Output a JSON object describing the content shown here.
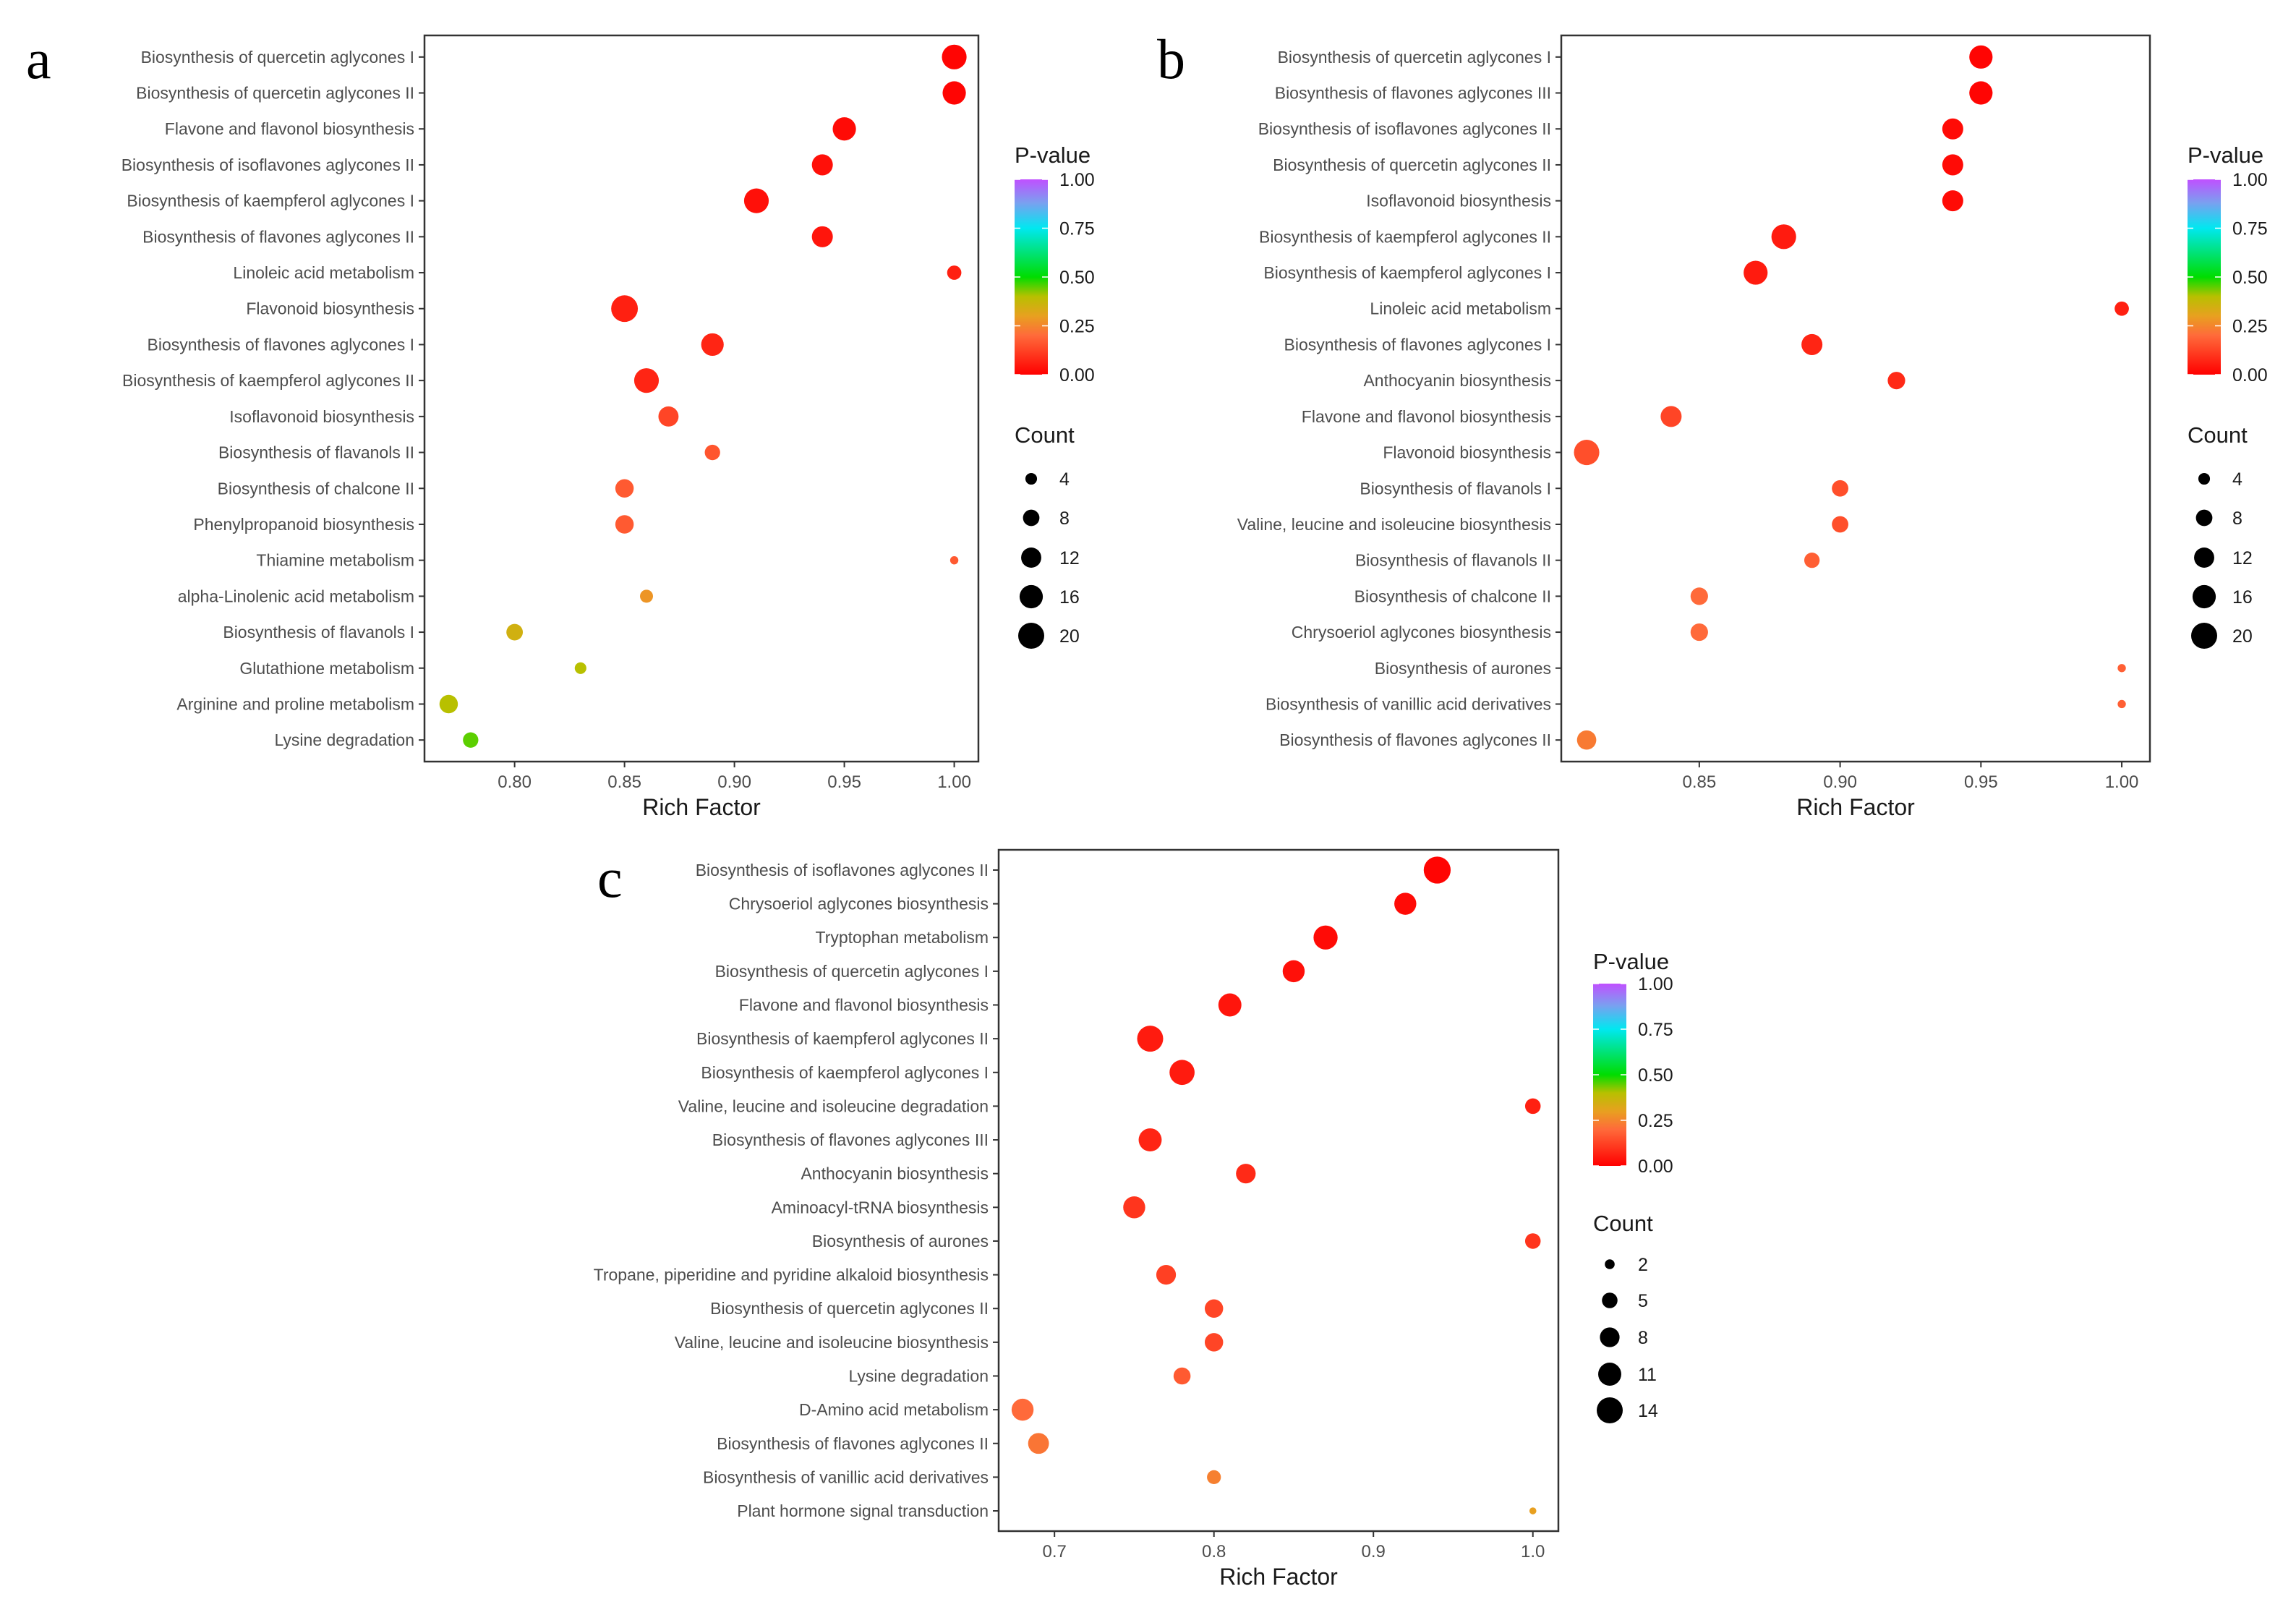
{
  "colorscale": {
    "stops": [
      [
        0,
        "#ff0000"
      ],
      [
        0.2,
        "#ff6a3a"
      ],
      [
        0.3,
        "#e8a020"
      ],
      [
        0.4,
        "#b8c000"
      ],
      [
        0.5,
        "#00dd00"
      ],
      [
        0.75,
        "#00e8f0"
      ],
      [
        0.88,
        "#7aa0f0"
      ],
      [
        1,
        "#c050ff"
      ]
    ]
  },
  "chart_data": [
    {
      "type": "scatter",
      "panel_label": "a",
      "xlabel": "Rich Factor",
      "xlim": [
        0.759,
        1.011
      ],
      "xticks": [
        0.8,
        0.85,
        0.9,
        0.95,
        1.0
      ],
      "xtick_labels": [
        "0.80",
        "0.85",
        "0.90",
        "0.95",
        "1.00"
      ],
      "color_legend": {
        "title": "P-value",
        "ticks": [
          "1.00",
          "0.75",
          "0.50",
          "0.25",
          "0.00"
        ],
        "values": [
          1,
          0.75,
          0.5,
          0.25,
          0
        ]
      },
      "size_legend": {
        "title": "Count",
        "values": [
          4,
          8,
          12,
          16,
          20
        ],
        "labels": [
          "4",
          "8",
          "12",
          "16",
          "20"
        ]
      },
      "points": [
        {
          "term": "Biosynthesis of quercetin aglycones I",
          "rich_factor": 1.0,
          "count": 18,
          "p_value": 0.01
        },
        {
          "term": "Biosynthesis of quercetin aglycones II",
          "rich_factor": 1.0,
          "count": 16,
          "p_value": 0.01
        },
        {
          "term": "Flavone and flavonol biosynthesis",
          "rich_factor": 0.95,
          "count": 16,
          "p_value": 0.02
        },
        {
          "term": "Biosynthesis of isoflavones aglycones II",
          "rich_factor": 0.94,
          "count": 13,
          "p_value": 0.03
        },
        {
          "term": "Biosynthesis of kaempferol aglycones I",
          "rich_factor": 0.91,
          "count": 18,
          "p_value": 0.03
        },
        {
          "term": "Biosynthesis of flavones aglycones II",
          "rich_factor": 0.94,
          "count": 13,
          "p_value": 0.04
        },
        {
          "term": "Linoleic acid metabolism",
          "rich_factor": 1.0,
          "count": 6,
          "p_value": 0.06
        },
        {
          "term": "Flavonoid biosynthesis",
          "rich_factor": 0.85,
          "count": 21,
          "p_value": 0.06
        },
        {
          "term": "Biosynthesis of flavones aglycones I",
          "rich_factor": 0.89,
          "count": 15,
          "p_value": 0.07
        },
        {
          "term": "Biosynthesis of kaempferol aglycones II",
          "rich_factor": 0.86,
          "count": 18,
          "p_value": 0.07
        },
        {
          "term": "Isoflavonoid biosynthesis",
          "rich_factor": 0.87,
          "count": 12,
          "p_value": 0.13
        },
        {
          "term": "Biosynthesis of flavanols II",
          "rich_factor": 0.89,
          "count": 7,
          "p_value": 0.16
        },
        {
          "term": "Biosynthesis of chalcone II",
          "rich_factor": 0.85,
          "count": 10,
          "p_value": 0.17
        },
        {
          "term": "Phenylpropanoid biosynthesis",
          "rich_factor": 0.85,
          "count": 10,
          "p_value": 0.17
        },
        {
          "term": "Thiamine metabolism",
          "rich_factor": 1.0,
          "count": 2,
          "p_value": 0.17
        },
        {
          "term": "alpha-Linolenic acid metabolism",
          "rich_factor": 0.86,
          "count": 5,
          "p_value": 0.28
        },
        {
          "term": "Biosynthesis of flavanols I",
          "rich_factor": 0.8,
          "count": 8,
          "p_value": 0.35
        },
        {
          "term": "Glutathione metabolism",
          "rich_factor": 0.83,
          "count": 4,
          "p_value": 0.4
        },
        {
          "term": "Arginine and proline metabolism",
          "rich_factor": 0.77,
          "count": 10,
          "p_value": 0.4
        },
        {
          "term": "Lysine degradation",
          "rich_factor": 0.78,
          "count": 7,
          "p_value": 0.45
        }
      ]
    },
    {
      "type": "scatter",
      "panel_label": "b",
      "xlabel": "Rich Factor",
      "xlim": [
        0.801,
        1.01
      ],
      "xticks": [
        0.85,
        0.9,
        0.95,
        1.0
      ],
      "xtick_labels": [
        "0.85",
        "0.90",
        "0.95",
        "1.00"
      ],
      "color_legend": {
        "title": "P-value",
        "ticks": [
          "1.00",
          "0.75",
          "0.50",
          "0.25",
          "0.00"
        ],
        "values": [
          1,
          0.75,
          0.5,
          0.25,
          0
        ]
      },
      "size_legend": {
        "title": "Count",
        "values": [
          4,
          8,
          12,
          16,
          20
        ],
        "labels": [
          "4",
          "8",
          "12",
          "16",
          "20"
        ]
      },
      "points": [
        {
          "term": "Biosynthesis of quercetin aglycones I",
          "rich_factor": 0.95,
          "count": 16,
          "p_value": 0.01
        },
        {
          "term": "Biosynthesis of flavones aglycones III",
          "rich_factor": 0.95,
          "count": 16,
          "p_value": 0.01
        },
        {
          "term": "Biosynthesis of isoflavones aglycones II",
          "rich_factor": 0.94,
          "count": 13,
          "p_value": 0.02
        },
        {
          "term": "Biosynthesis of quercetin aglycones II",
          "rich_factor": 0.94,
          "count": 13,
          "p_value": 0.02
        },
        {
          "term": "Isoflavonoid biosynthesis",
          "rich_factor": 0.94,
          "count": 13,
          "p_value": 0.02
        },
        {
          "term": "Biosynthesis of kaempferol aglycones II",
          "rich_factor": 0.88,
          "count": 18,
          "p_value": 0.05
        },
        {
          "term": "Biosynthesis of kaempferol aglycones I",
          "rich_factor": 0.87,
          "count": 17,
          "p_value": 0.05
        },
        {
          "term": "Linoleic acid metabolism",
          "rich_factor": 1.0,
          "count": 6,
          "p_value": 0.06
        },
        {
          "term": "Biosynthesis of flavones aglycones I",
          "rich_factor": 0.89,
          "count": 13,
          "p_value": 0.07
        },
        {
          "term": "Anthocyanin biosynthesis",
          "rich_factor": 0.92,
          "count": 9,
          "p_value": 0.08
        },
        {
          "term": "Flavone and flavonol biosynthesis",
          "rich_factor": 0.84,
          "count": 13,
          "p_value": 0.13
        },
        {
          "term": "Flavonoid biosynthesis",
          "rich_factor": 0.81,
          "count": 19,
          "p_value": 0.15
        },
        {
          "term": "Biosynthesis of flavanols I",
          "rich_factor": 0.9,
          "count": 8,
          "p_value": 0.15
        },
        {
          "term": "Valine, leucine and isoleucine biosynthesis",
          "rich_factor": 0.9,
          "count": 8,
          "p_value": 0.15
        },
        {
          "term": "Biosynthesis of flavanols II",
          "rich_factor": 0.89,
          "count": 7,
          "p_value": 0.18
        },
        {
          "term": "Biosynthesis of chalcone II",
          "rich_factor": 0.85,
          "count": 9,
          "p_value": 0.2
        },
        {
          "term": "Chrysoeriol aglycones biosynthesis",
          "rich_factor": 0.85,
          "count": 9,
          "p_value": 0.2
        },
        {
          "term": "Biosynthesis of aurones",
          "rich_factor": 1.0,
          "count": 2,
          "p_value": 0.18
        },
        {
          "term": "Biosynthesis of vanillic acid derivatives",
          "rich_factor": 1.0,
          "count": 2,
          "p_value": 0.18
        },
        {
          "term": "Biosynthesis of flavones aglycones II",
          "rich_factor": 0.81,
          "count": 11,
          "p_value": 0.23
        }
      ]
    },
    {
      "type": "scatter",
      "panel_label": "c",
      "xlabel": "Rich Factor",
      "xlim": [
        0.665,
        1.016
      ],
      "xticks": [
        0.7,
        0.8,
        0.9,
        1.0
      ],
      "xtick_labels": [
        "0.7",
        "0.8",
        "0.9",
        "1.0"
      ],
      "color_legend": {
        "title": "P-value",
        "ticks": [
          "1.00",
          "0.75",
          "0.50",
          "0.25",
          "0.00"
        ],
        "values": [
          1,
          0.75,
          0.5,
          0.25,
          0
        ]
      },
      "size_legend": {
        "title": "Count",
        "values": [
          2,
          5,
          8,
          11,
          14
        ],
        "labels": [
          "2",
          "5",
          "8",
          "11",
          "14"
        ]
      },
      "points": [
        {
          "term": "Biosynthesis of isoflavones aglycones II",
          "rich_factor": 0.94,
          "count": 15,
          "p_value": 0.01
        },
        {
          "term": "Chrysoeriol aglycones biosynthesis",
          "rich_factor": 0.92,
          "count": 10,
          "p_value": 0.02
        },
        {
          "term": "Tryptophan metabolism",
          "rich_factor": 0.87,
          "count": 12,
          "p_value": 0.02
        },
        {
          "term": "Biosynthesis of quercetin aglycones I",
          "rich_factor": 0.85,
          "count": 10,
          "p_value": 0.03
        },
        {
          "term": "Flavone and flavonol biosynthesis",
          "rich_factor": 0.81,
          "count": 11,
          "p_value": 0.04
        },
        {
          "term": "Biosynthesis of kaempferol aglycones II",
          "rich_factor": 0.76,
          "count": 14,
          "p_value": 0.05
        },
        {
          "term": "Biosynthesis of kaempferol aglycones I",
          "rich_factor": 0.78,
          "count": 13,
          "p_value": 0.05
        },
        {
          "term": "Valine, leucine and isoleucine degradation",
          "rich_factor": 1.0,
          "count": 5,
          "p_value": 0.06
        },
        {
          "term": "Biosynthesis of flavones aglycones III",
          "rich_factor": 0.76,
          "count": 11,
          "p_value": 0.07
        },
        {
          "term": "Anthocyanin biosynthesis",
          "rich_factor": 0.82,
          "count": 8,
          "p_value": 0.08
        },
        {
          "term": "Aminoacyl-tRNA biosynthesis",
          "rich_factor": 0.75,
          "count": 10,
          "p_value": 0.1
        },
        {
          "term": "Biosynthesis of aurones",
          "rich_factor": 1.0,
          "count": 5,
          "p_value": 0.1
        },
        {
          "term": "Tropane, piperidine and pyridine alkaloid biosynthesis",
          "rich_factor": 0.77,
          "count": 8,
          "p_value": 0.12
        },
        {
          "term": "Biosynthesis of quercetin aglycones II",
          "rich_factor": 0.8,
          "count": 7,
          "p_value": 0.13
        },
        {
          "term": "Valine, leucine and isoleucine biosynthesis",
          "rich_factor": 0.8,
          "count": 7,
          "p_value": 0.13
        },
        {
          "term": "Lysine degradation",
          "rich_factor": 0.78,
          "count": 6,
          "p_value": 0.17
        },
        {
          "term": "D-Amino acid metabolism",
          "rich_factor": 0.68,
          "count": 10,
          "p_value": 0.2
        },
        {
          "term": "Biosynthesis of flavones aglycones II",
          "rich_factor": 0.69,
          "count": 9,
          "p_value": 0.22
        },
        {
          "term": "Biosynthesis of vanillic acid derivatives",
          "rich_factor": 0.8,
          "count": 4,
          "p_value": 0.24
        },
        {
          "term": "Plant hormone signal transduction",
          "rich_factor": 1.0,
          "count": 1,
          "p_value": 0.3
        }
      ]
    }
  ]
}
